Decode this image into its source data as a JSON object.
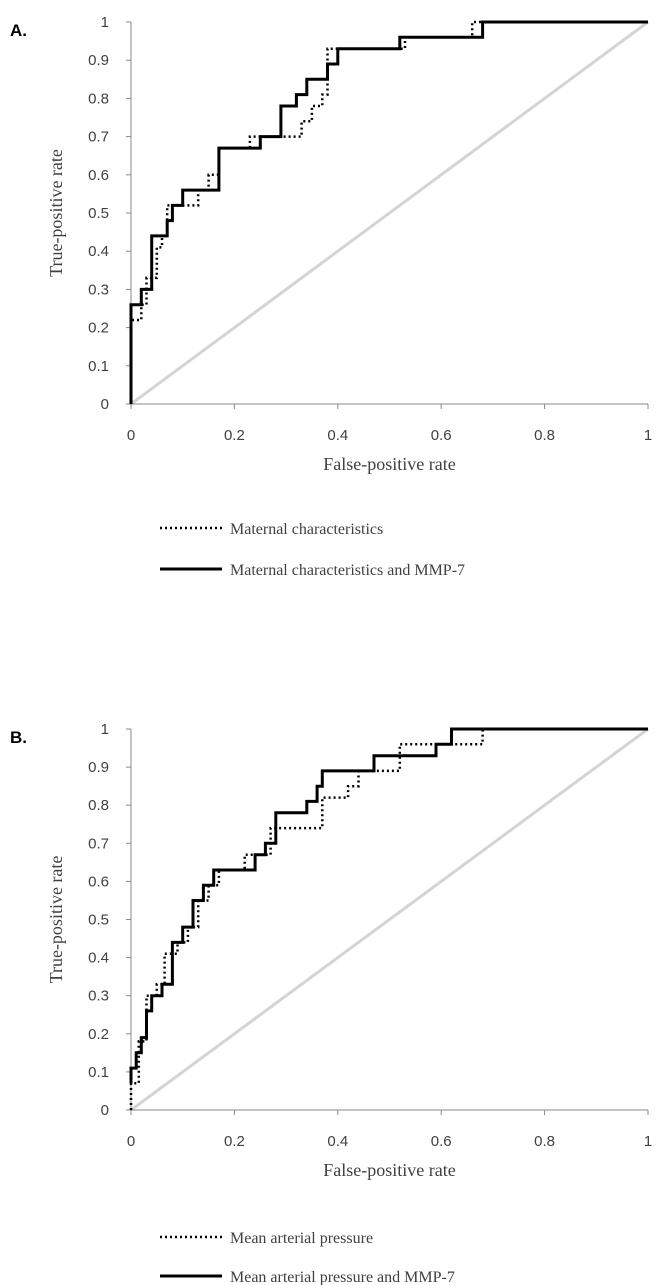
{
  "colors": {
    "reference_line": "#d4d4d4",
    "curve": "#000000",
    "axis": "#888888",
    "text": "#404040"
  },
  "chart_data": [
    {
      "type": "line",
      "panel_label": "A.",
      "xlabel": "False-positive rate",
      "ylabel": "True-positive rate",
      "xlim": [
        0,
        1
      ],
      "ylim": [
        0,
        1
      ],
      "x_ticks": [
        "0",
        "0.2",
        "0.4",
        "0.6",
        "0.8",
        "1"
      ],
      "y_ticks": [
        "0",
        "0.1",
        "0.2",
        "0.3",
        "0.4",
        "0.5",
        "0.6",
        "0.7",
        "0.8",
        "0.9",
        "1"
      ],
      "grid": false,
      "legend_position": "bottom",
      "series": [
        {
          "name": "Maternal characteristics",
          "style": "dotted",
          "x": [
            0,
            0,
            0.02,
            0.02,
            0.03,
            0.03,
            0.05,
            0.05,
            0.06,
            0.06,
            0.07,
            0.07,
            0.1,
            0.1,
            0.13,
            0.13,
            0.15,
            0.15,
            0.17,
            0.17,
            0.23,
            0.23,
            0.28,
            0.28,
            0.33,
            0.33,
            0.35,
            0.35,
            0.37,
            0.37,
            0.38,
            0.38,
            0.53,
            0.53,
            0.66,
            0.66,
            1.0
          ],
          "y": [
            0,
            0.22,
            0.22,
            0.26,
            0.26,
            0.33,
            0.33,
            0.41,
            0.41,
            0.44,
            0.44,
            0.52,
            0.52,
            0.52,
            0.52,
            0.56,
            0.56,
            0.6,
            0.6,
            0.67,
            0.67,
            0.7,
            0.7,
            0.7,
            0.7,
            0.74,
            0.74,
            0.78,
            0.78,
            0.81,
            0.81,
            0.93,
            0.93,
            0.96,
            0.96,
            1.0,
            1.0
          ]
        },
        {
          "name": "Maternal characteristics and MMP-7",
          "style": "solid",
          "x": [
            0,
            0,
            0.02,
            0.02,
            0.03,
            0.03,
            0.04,
            0.04,
            0.07,
            0.07,
            0.08,
            0.08,
            0.1,
            0.1,
            0.17,
            0.17,
            0.25,
            0.25,
            0.29,
            0.29,
            0.32,
            0.32,
            0.34,
            0.34,
            0.38,
            0.38,
            0.4,
            0.4,
            0.52,
            0.52,
            0.68,
            0.68,
            1.0
          ],
          "y": [
            0,
            0.26,
            0.26,
            0.3,
            0.3,
            0.3,
            0.3,
            0.44,
            0.44,
            0.48,
            0.48,
            0.52,
            0.52,
            0.56,
            0.56,
            0.67,
            0.67,
            0.7,
            0.7,
            0.78,
            0.78,
            0.81,
            0.81,
            0.85,
            0.85,
            0.89,
            0.89,
            0.93,
            0.93,
            0.96,
            0.96,
            1.0,
            1.0
          ]
        }
      ]
    },
    {
      "type": "line",
      "panel_label": "B.",
      "xlabel": "False-positive rate",
      "ylabel": "True-positive rate",
      "xlim": [
        0,
        1
      ],
      "ylim": [
        0,
        1
      ],
      "x_ticks": [
        "0",
        "0.2",
        "0.4",
        "0.6",
        "0.8",
        "1"
      ],
      "y_ticks": [
        "0",
        "0.1",
        "0.2",
        "0.3",
        "0.4",
        "0.5",
        "0.6",
        "0.7",
        "0.8",
        "0.9",
        "1"
      ],
      "grid": false,
      "legend_position": "bottom",
      "series": [
        {
          "name": "Mean arterial pressure",
          "style": "dotted",
          "x": [
            0,
            0,
            0.015,
            0.015,
            0.03,
            0.03,
            0.05,
            0.05,
            0.065,
            0.065,
            0.09,
            0.09,
            0.11,
            0.11,
            0.13,
            0.13,
            0.15,
            0.15,
            0.17,
            0.17,
            0.22,
            0.22,
            0.27,
            0.27,
            0.37,
            0.37,
            0.42,
            0.42,
            0.44,
            0.44,
            0.52,
            0.52,
            0.68,
            0.68,
            1.0
          ],
          "y": [
            0,
            0.07,
            0.07,
            0.18,
            0.18,
            0.3,
            0.3,
            0.33,
            0.33,
            0.41,
            0.41,
            0.44,
            0.44,
            0.48,
            0.48,
            0.55,
            0.55,
            0.59,
            0.59,
            0.63,
            0.63,
            0.67,
            0.67,
            0.74,
            0.74,
            0.82,
            0.82,
            0.85,
            0.85,
            0.89,
            0.89,
            0.96,
            0.96,
            1.0,
            1.0
          ]
        },
        {
          "name": "Mean arterial pressure and MMP-7",
          "style": "solid",
          "x": [
            0,
            0,
            0.01,
            0.01,
            0.02,
            0.02,
            0.03,
            0.03,
            0.04,
            0.04,
            0.06,
            0.06,
            0.08,
            0.08,
            0.1,
            0.1,
            0.12,
            0.12,
            0.14,
            0.14,
            0.16,
            0.16,
            0.24,
            0.24,
            0.26,
            0.26,
            0.28,
            0.28,
            0.34,
            0.34,
            0.36,
            0.36,
            0.37,
            0.37,
            0.47,
            0.47,
            0.59,
            0.59,
            0.62,
            0.62,
            1.0
          ],
          "y": [
            0.07,
            0.11,
            0.11,
            0.15,
            0.15,
            0.19,
            0.19,
            0.26,
            0.26,
            0.3,
            0.3,
            0.33,
            0.33,
            0.44,
            0.44,
            0.48,
            0.48,
            0.55,
            0.55,
            0.59,
            0.59,
            0.63,
            0.63,
            0.67,
            0.67,
            0.7,
            0.7,
            0.78,
            0.78,
            0.81,
            0.81,
            0.85,
            0.85,
            0.89,
            0.89,
            0.93,
            0.93,
            0.96,
            0.96,
            1.0,
            1.0
          ]
        }
      ]
    }
  ]
}
